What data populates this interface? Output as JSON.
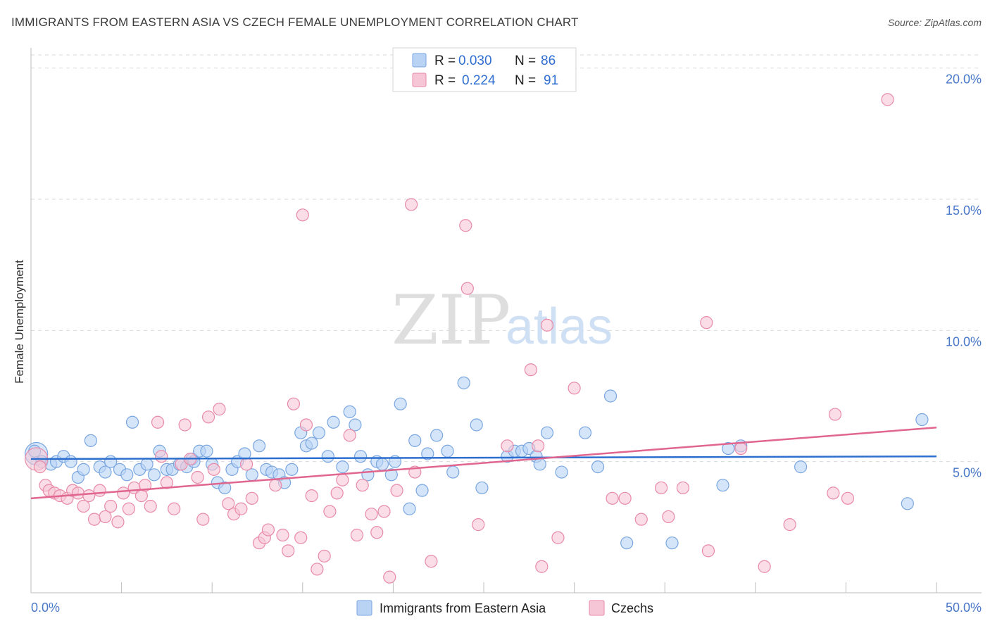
{
  "title": "IMMIGRANTS FROM EASTERN ASIA VS CZECH FEMALE UNEMPLOYMENT CORRELATION CHART",
  "source": "Source: ZipAtlas.com",
  "watermark": {
    "zip": "ZIP",
    "atlas": "atlas"
  },
  "colors": {
    "blue_fill": "#b9d3f5",
    "blue_stroke": "#7aa6e0",
    "blue_line": "#2d6fcf",
    "pink_fill": "#f6c6d6",
    "pink_stroke": "#e88aa8",
    "pink_line": "#e0658f",
    "grid": "#d9d9d9",
    "tick_label": "#4a78c9"
  },
  "legend": {
    "rows": [
      {
        "r_label": "R =",
        "r_value": "0.030",
        "n_label": "N =",
        "n_value": "86",
        "series": "blue"
      },
      {
        "r_label": "R =",
        "r_value": "0.224",
        "n_label": "N =",
        "n_value": "91",
        "series": "pink"
      }
    ]
  },
  "chart_data": {
    "type": "scatter",
    "title": "IMMIGRANTS FROM EASTERN ASIA VS CZECH FEMALE UNEMPLOYMENT CORRELATION CHART",
    "xlabel": "",
    "ylabel": "Female Unemployment",
    "xlim": [
      0,
      50
    ],
    "ylim": [
      0,
      20.5
    ],
    "x_tick_labels": [
      "0.0%",
      "50.0%"
    ],
    "y_ticks": [
      5,
      10,
      15,
      20
    ],
    "y_tick_labels": [
      "5.0%",
      "10.0%",
      "15.0%",
      "20.0%"
    ],
    "grid": true,
    "legend_position": "top-center",
    "series": [
      {
        "name": "Immigrants from Eastern Asia",
        "color": "blue",
        "trend": {
          "x": [
            0,
            50
          ],
          "y": [
            5.1,
            5.2
          ]
        },
        "points": [
          [
            0.3,
            5.3
          ],
          [
            0.6,
            5.0
          ],
          [
            1.1,
            4.9
          ],
          [
            1.4,
            5.0
          ],
          [
            1.8,
            5.2
          ],
          [
            2.2,
            5.0
          ],
          [
            2.6,
            4.4
          ],
          [
            2.9,
            4.7
          ],
          [
            3.3,
            5.8
          ],
          [
            3.8,
            4.8
          ],
          [
            4.1,
            4.6
          ],
          [
            4.4,
            5.0
          ],
          [
            4.9,
            4.7
          ],
          [
            5.3,
            4.5
          ],
          [
            5.6,
            6.5
          ],
          [
            6.0,
            4.7
          ],
          [
            6.4,
            4.9
          ],
          [
            6.8,
            4.5
          ],
          [
            7.1,
            5.4
          ],
          [
            7.5,
            4.7
          ],
          [
            7.8,
            4.7
          ],
          [
            8.2,
            4.9
          ],
          [
            8.6,
            4.8
          ],
          [
            8.9,
            5.1
          ],
          [
            9.3,
            5.4
          ],
          [
            9.7,
            5.4
          ],
          [
            10.0,
            4.9
          ],
          [
            10.3,
            4.2
          ],
          [
            10.7,
            4.0
          ],
          [
            11.1,
            4.7
          ],
          [
            11.4,
            5.0
          ],
          [
            11.8,
            5.3
          ],
          [
            12.2,
            4.5
          ],
          [
            12.6,
            5.6
          ],
          [
            13.0,
            4.7
          ],
          [
            13.3,
            4.6
          ],
          [
            13.7,
            4.5
          ],
          [
            14.0,
            4.2
          ],
          [
            14.4,
            4.7
          ],
          [
            14.9,
            6.1
          ],
          [
            15.2,
            5.6
          ],
          [
            15.5,
            5.7
          ],
          [
            15.9,
            6.1
          ],
          [
            16.4,
            5.2
          ],
          [
            16.7,
            6.5
          ],
          [
            17.2,
            4.8
          ],
          [
            17.6,
            6.9
          ],
          [
            17.9,
            6.4
          ],
          [
            18.2,
            5.2
          ],
          [
            18.6,
            4.5
          ],
          [
            19.1,
            5.0
          ],
          [
            19.4,
            4.9
          ],
          [
            19.9,
            4.5
          ],
          [
            20.1,
            5.0
          ],
          [
            20.4,
            7.2
          ],
          [
            20.9,
            3.2
          ],
          [
            21.2,
            5.8
          ],
          [
            21.6,
            3.9
          ],
          [
            21.9,
            5.3
          ],
          [
            22.4,
            6.0
          ],
          [
            23.0,
            5.4
          ],
          [
            23.3,
            4.6
          ],
          [
            23.9,
            8.0
          ],
          [
            24.6,
            6.4
          ],
          [
            24.9,
            4.0
          ],
          [
            26.3,
            5.2
          ],
          [
            26.7,
            5.4
          ],
          [
            27.1,
            5.4
          ],
          [
            27.5,
            5.5
          ],
          [
            27.9,
            5.2
          ],
          [
            28.1,
            4.9
          ],
          [
            28.5,
            6.1
          ],
          [
            29.3,
            4.6
          ],
          [
            30.6,
            6.1
          ],
          [
            31.3,
            4.8
          ],
          [
            32.0,
            7.5
          ],
          [
            32.9,
            1.9
          ],
          [
            35.4,
            1.9
          ],
          [
            38.2,
            4.1
          ],
          [
            38.5,
            5.5
          ],
          [
            39.2,
            5.6
          ],
          [
            42.5,
            4.8
          ],
          [
            48.4,
            3.4
          ],
          [
            49.2,
            6.6
          ],
          [
            0.2,
            5.4
          ],
          [
            9.0,
            5.0
          ]
        ]
      },
      {
        "name": "Czechs",
        "color": "pink",
        "trend": {
          "x": [
            0,
            50
          ],
          "y": [
            3.6,
            6.3
          ]
        },
        "points": [
          [
            0.3,
            5.1
          ],
          [
            0.5,
            4.8
          ],
          [
            0.8,
            4.1
          ],
          [
            1.0,
            3.9
          ],
          [
            1.3,
            3.8
          ],
          [
            1.6,
            3.7
          ],
          [
            2.0,
            3.6
          ],
          [
            2.3,
            3.9
          ],
          [
            2.6,
            3.8
          ],
          [
            2.9,
            3.3
          ],
          [
            3.2,
            3.7
          ],
          [
            3.5,
            2.8
          ],
          [
            3.8,
            3.9
          ],
          [
            4.1,
            2.9
          ],
          [
            4.4,
            3.3
          ],
          [
            4.8,
            2.7
          ],
          [
            5.1,
            3.8
          ],
          [
            5.4,
            3.2
          ],
          [
            5.7,
            4.0
          ],
          [
            6.1,
            3.7
          ],
          [
            6.3,
            4.1
          ],
          [
            6.6,
            3.3
          ],
          [
            7.0,
            6.5
          ],
          [
            7.2,
            5.2
          ],
          [
            7.5,
            4.2
          ],
          [
            7.9,
            3.2
          ],
          [
            8.3,
            4.9
          ],
          [
            8.5,
            6.4
          ],
          [
            8.8,
            5.1
          ],
          [
            9.2,
            4.4
          ],
          [
            9.5,
            2.8
          ],
          [
            9.8,
            6.7
          ],
          [
            10.1,
            4.7
          ],
          [
            10.4,
            7.0
          ],
          [
            10.9,
            3.4
          ],
          [
            11.2,
            3.0
          ],
          [
            11.6,
            3.2
          ],
          [
            11.9,
            4.9
          ],
          [
            12.2,
            3.6
          ],
          [
            12.6,
            1.9
          ],
          [
            12.9,
            2.1
          ],
          [
            13.1,
            2.4
          ],
          [
            13.5,
            4.1
          ],
          [
            13.9,
            2.2
          ],
          [
            14.2,
            1.6
          ],
          [
            14.5,
            7.2
          ],
          [
            14.9,
            2.1
          ],
          [
            15.2,
            6.4
          ],
          [
            15.5,
            3.7
          ],
          [
            15.8,
            0.9
          ],
          [
            16.2,
            1.4
          ],
          [
            16.5,
            3.1
          ],
          [
            16.9,
            3.8
          ],
          [
            17.2,
            4.3
          ],
          [
            17.6,
            6.0
          ],
          [
            18.0,
            2.2
          ],
          [
            18.3,
            4.1
          ],
          [
            18.8,
            3.0
          ],
          [
            19.1,
            2.3
          ],
          [
            19.5,
            3.1
          ],
          [
            19.8,
            0.6
          ],
          [
            20.2,
            3.9
          ],
          [
            21.2,
            4.6
          ],
          [
            22.1,
            1.2
          ],
          [
            24.1,
            11.6
          ],
          [
            24.7,
            2.6
          ],
          [
            28.2,
            1.0
          ],
          [
            28.5,
            10.2
          ],
          [
            29.1,
            2.1
          ],
          [
            30.0,
            7.8
          ],
          [
            32.1,
            3.6
          ],
          [
            33.7,
            2.8
          ],
          [
            34.8,
            4.0
          ],
          [
            37.4,
            1.6
          ],
          [
            40.5,
            1.0
          ],
          [
            41.9,
            2.6
          ],
          [
            44.3,
            3.8
          ],
          [
            45.1,
            3.6
          ],
          [
            47.3,
            18.8
          ],
          [
            15.0,
            14.4
          ],
          [
            21.0,
            14.8
          ],
          [
            24.0,
            14.0
          ],
          [
            37.3,
            10.3
          ],
          [
            39.2,
            5.5
          ],
          [
            44.4,
            6.8
          ],
          [
            26.3,
            5.6
          ],
          [
            28.0,
            5.6
          ],
          [
            32.8,
            3.6
          ],
          [
            35.2,
            2.9
          ],
          [
            36.0,
            4.0
          ],
          [
            27.6,
            8.5
          ]
        ]
      }
    ]
  },
  "bottom_legend": {
    "items": [
      {
        "label": "Immigrants from Eastern Asia",
        "series": "blue"
      },
      {
        "label": "Czechs",
        "series": "pink"
      }
    ]
  }
}
